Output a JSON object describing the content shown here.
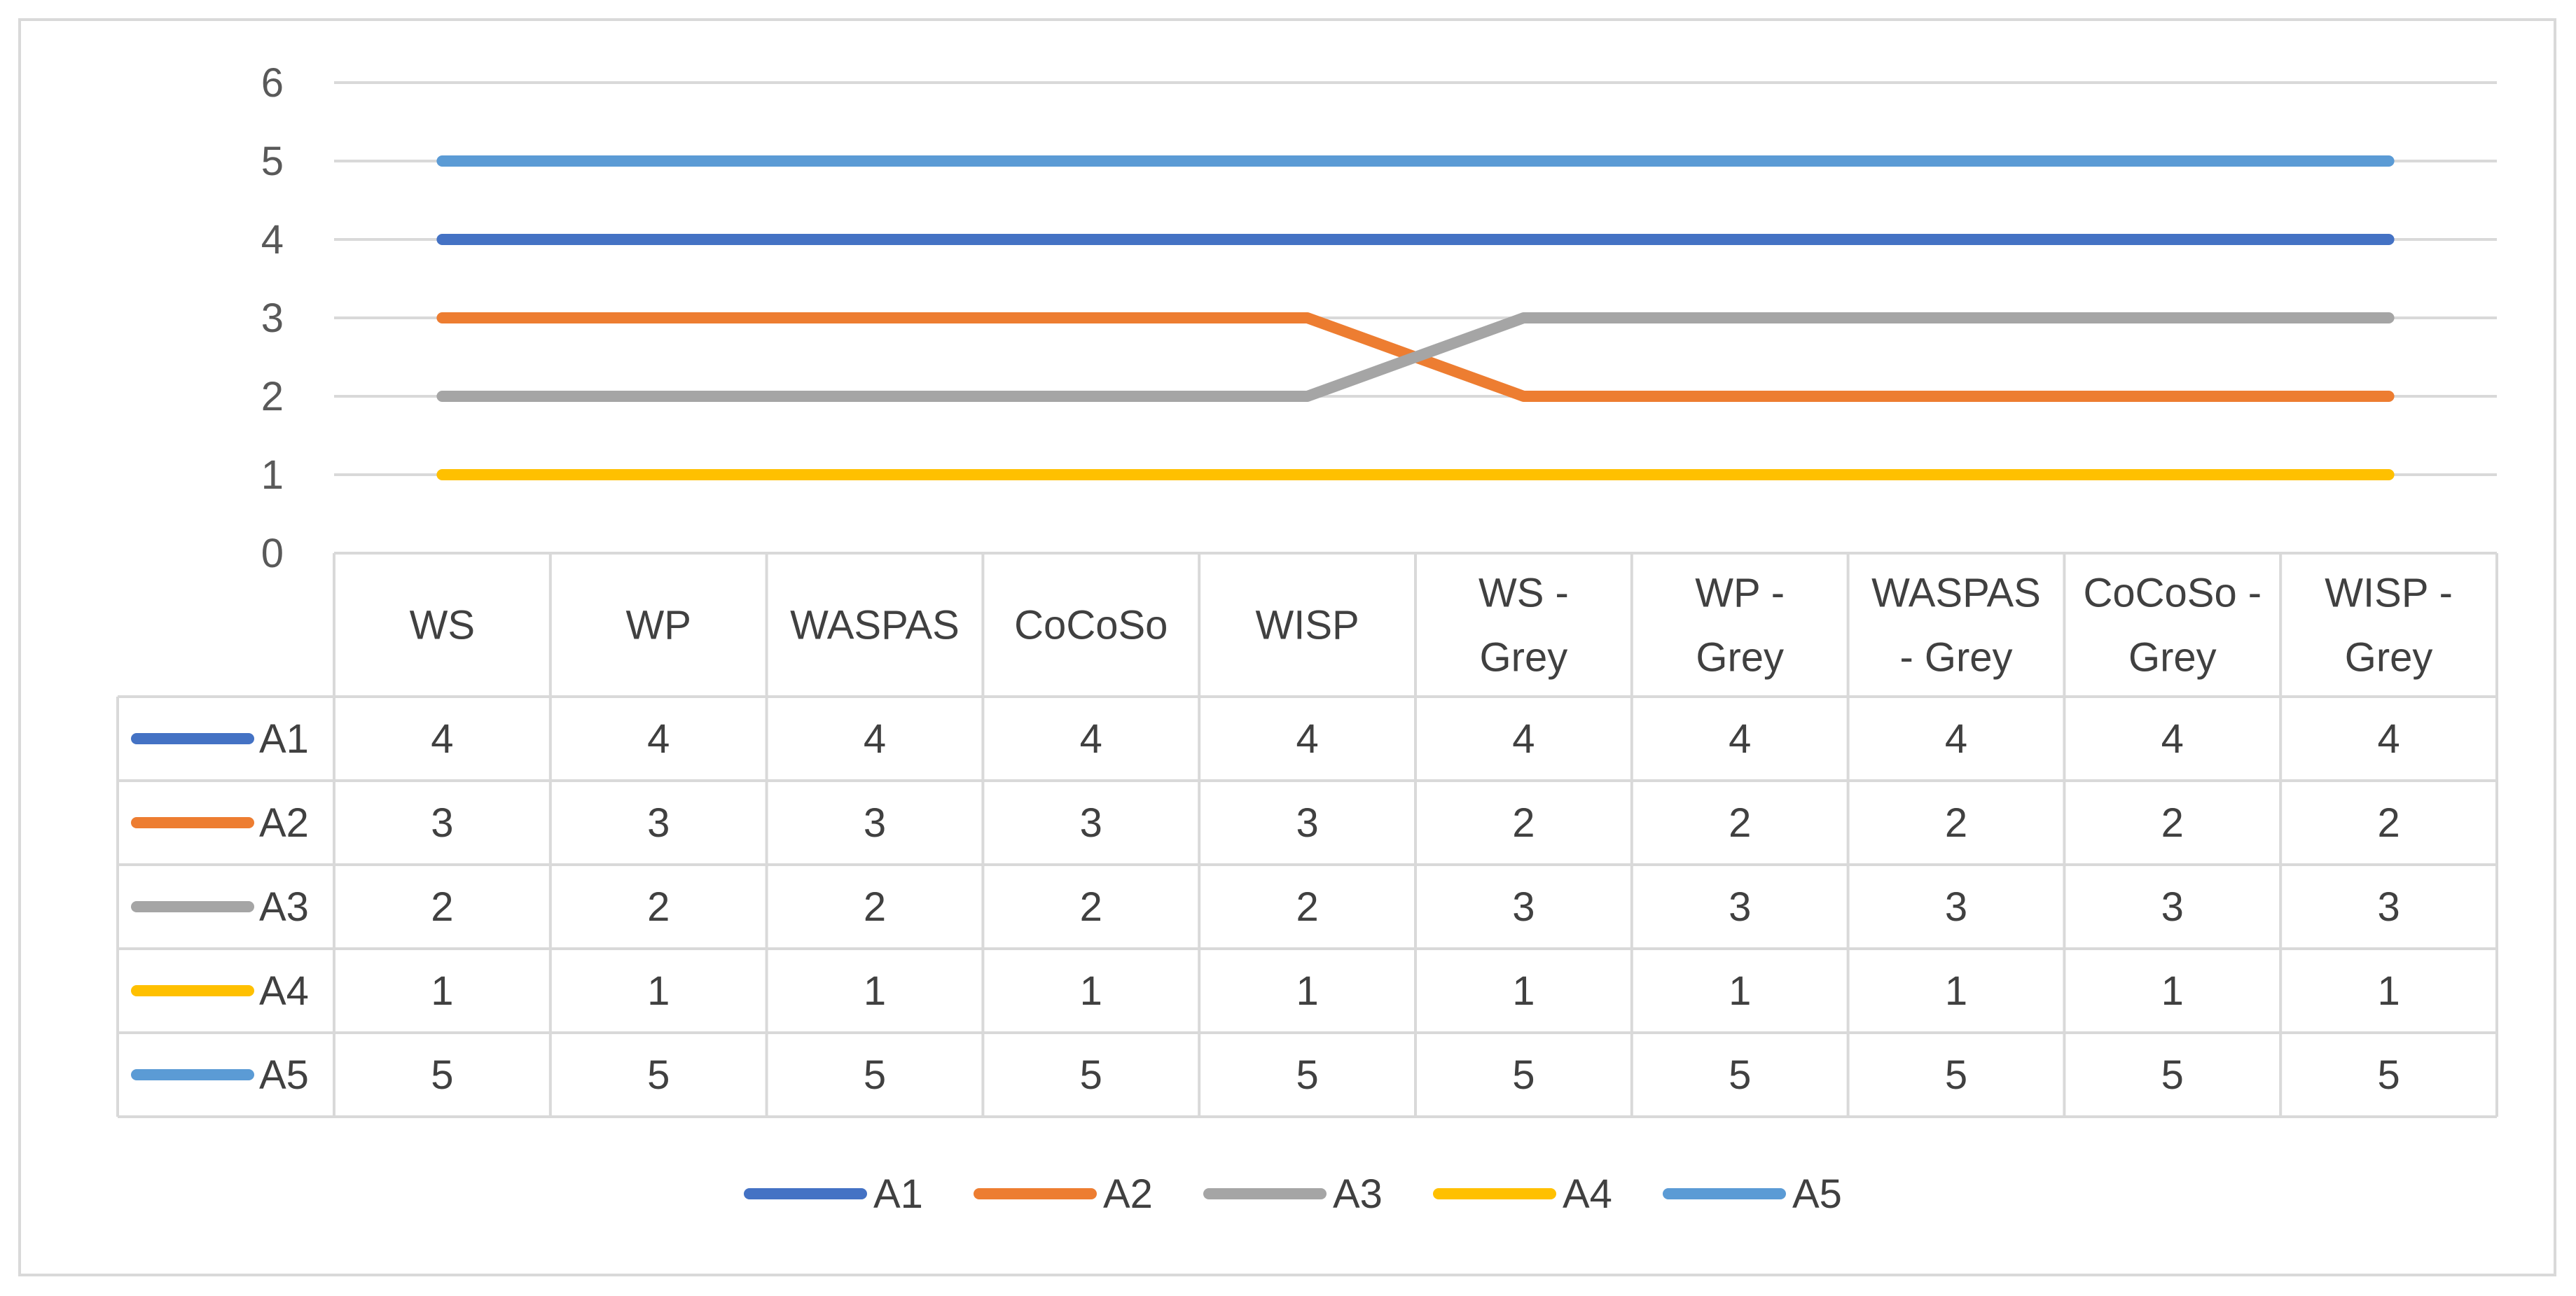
{
  "chart_data": {
    "type": "line",
    "title": "",
    "xlabel": "",
    "ylabel": "",
    "ylim": [
      0,
      6
    ],
    "yticks": [
      "0",
      "1",
      "2",
      "3",
      "4",
      "5",
      "6"
    ],
    "grid": true,
    "legend_position": "bottom",
    "data_table": true,
    "categories": [
      [
        "WS"
      ],
      [
        "WP"
      ],
      [
        "WASPAS"
      ],
      [
        "CoCoSo"
      ],
      [
        "WISP"
      ],
      [
        "WS -",
        "Grey"
      ],
      [
        "WP -",
        "Grey"
      ],
      [
        "WASPAS",
        "- Grey"
      ],
      [
        "CoCoSo  -",
        "Grey"
      ],
      [
        "WISP -",
        "Grey"
      ]
    ],
    "series": [
      {
        "name": "A1",
        "color": "#4472c4",
        "values": [
          4,
          4,
          4,
          4,
          4,
          4,
          4,
          4,
          4,
          4
        ]
      },
      {
        "name": "A2",
        "color": "#ed7d31",
        "values": [
          3,
          3,
          3,
          3,
          3,
          2,
          2,
          2,
          2,
          2
        ]
      },
      {
        "name": "A3",
        "color": "#a5a5a5",
        "values": [
          2,
          2,
          2,
          2,
          2,
          3,
          3,
          3,
          3,
          3
        ]
      },
      {
        "name": "A4",
        "color": "#ffc000",
        "values": [
          1,
          1,
          1,
          1,
          1,
          1,
          1,
          1,
          1,
          1
        ]
      },
      {
        "name": "A5",
        "color": "#5b9bd5",
        "values": [
          5,
          5,
          5,
          5,
          5,
          5,
          5,
          5,
          5,
          5
        ]
      }
    ],
    "colors": {
      "grid": "#d9d9d9",
      "border": "#d9d9d9",
      "text": "#404040",
      "axis_text": "#595959"
    }
  }
}
